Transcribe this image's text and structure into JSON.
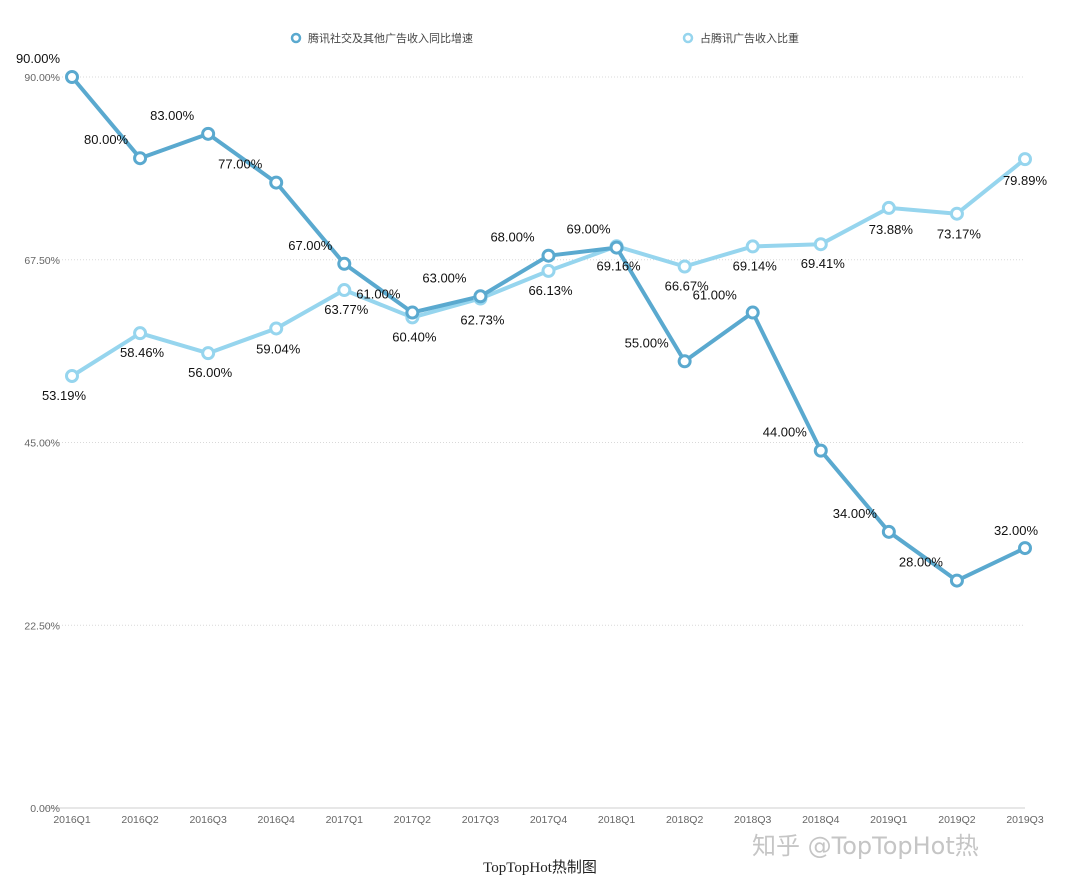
{
  "chart_data": {
    "type": "line",
    "categories": [
      "2016Q1",
      "2016Q2",
      "2016Q3",
      "2016Q4",
      "2017Q1",
      "2017Q2",
      "2017Q3",
      "2017Q4",
      "2018Q1",
      "2018Q2",
      "2018Q3",
      "2018Q4",
      "2019Q1",
      "2019Q2",
      "2019Q3"
    ],
    "series": [
      {
        "name": "腾讯社交及其他广告收入同比增速",
        "color": "#5aa9cf",
        "values": [
          90.0,
          80.0,
          83.0,
          77.0,
          67.0,
          61.0,
          63.0,
          68.0,
          69.0,
          55.0,
          61.0,
          44.0,
          34.0,
          28.0,
          32.0
        ],
        "labels": [
          "90.00%",
          "80.00%",
          "83.00%",
          "77.00%",
          "67.00%",
          "61.00%",
          "63.00%",
          "68.00%",
          "69.00%",
          "55.00%",
          "61.00%",
          "44.00%",
          "34.00%",
          "28.00%",
          "32.00%"
        ]
      },
      {
        "name": "占腾讯广告收入比重",
        "color": "#96d5ee",
        "values": [
          53.19,
          58.46,
          56.0,
          59.04,
          63.77,
          60.4,
          62.73,
          66.13,
          69.16,
          66.67,
          69.14,
          69.41,
          73.88,
          73.17,
          79.89
        ],
        "labels": [
          "53.19%",
          "58.46%",
          "56.00%",
          "59.04%",
          "63.77%",
          "60.40%",
          "62.73%",
          "66.13%",
          "69.16%",
          "66.67%",
          "69.14%",
          "69.41%",
          "73.88%",
          "73.17%",
          "79.89%"
        ]
      }
    ],
    "ylim": [
      0,
      90
    ],
    "yticks": [
      0,
      22.5,
      45,
      67.5,
      90
    ],
    "ytick_labels": [
      "0.00%",
      "22.50%",
      "45.00%",
      "67.50%",
      "90.00%"
    ],
    "legend_position": "top",
    "grid": true
  },
  "caption": "TopTopHot热制图",
  "watermark": "知乎 @TopTopHot热"
}
